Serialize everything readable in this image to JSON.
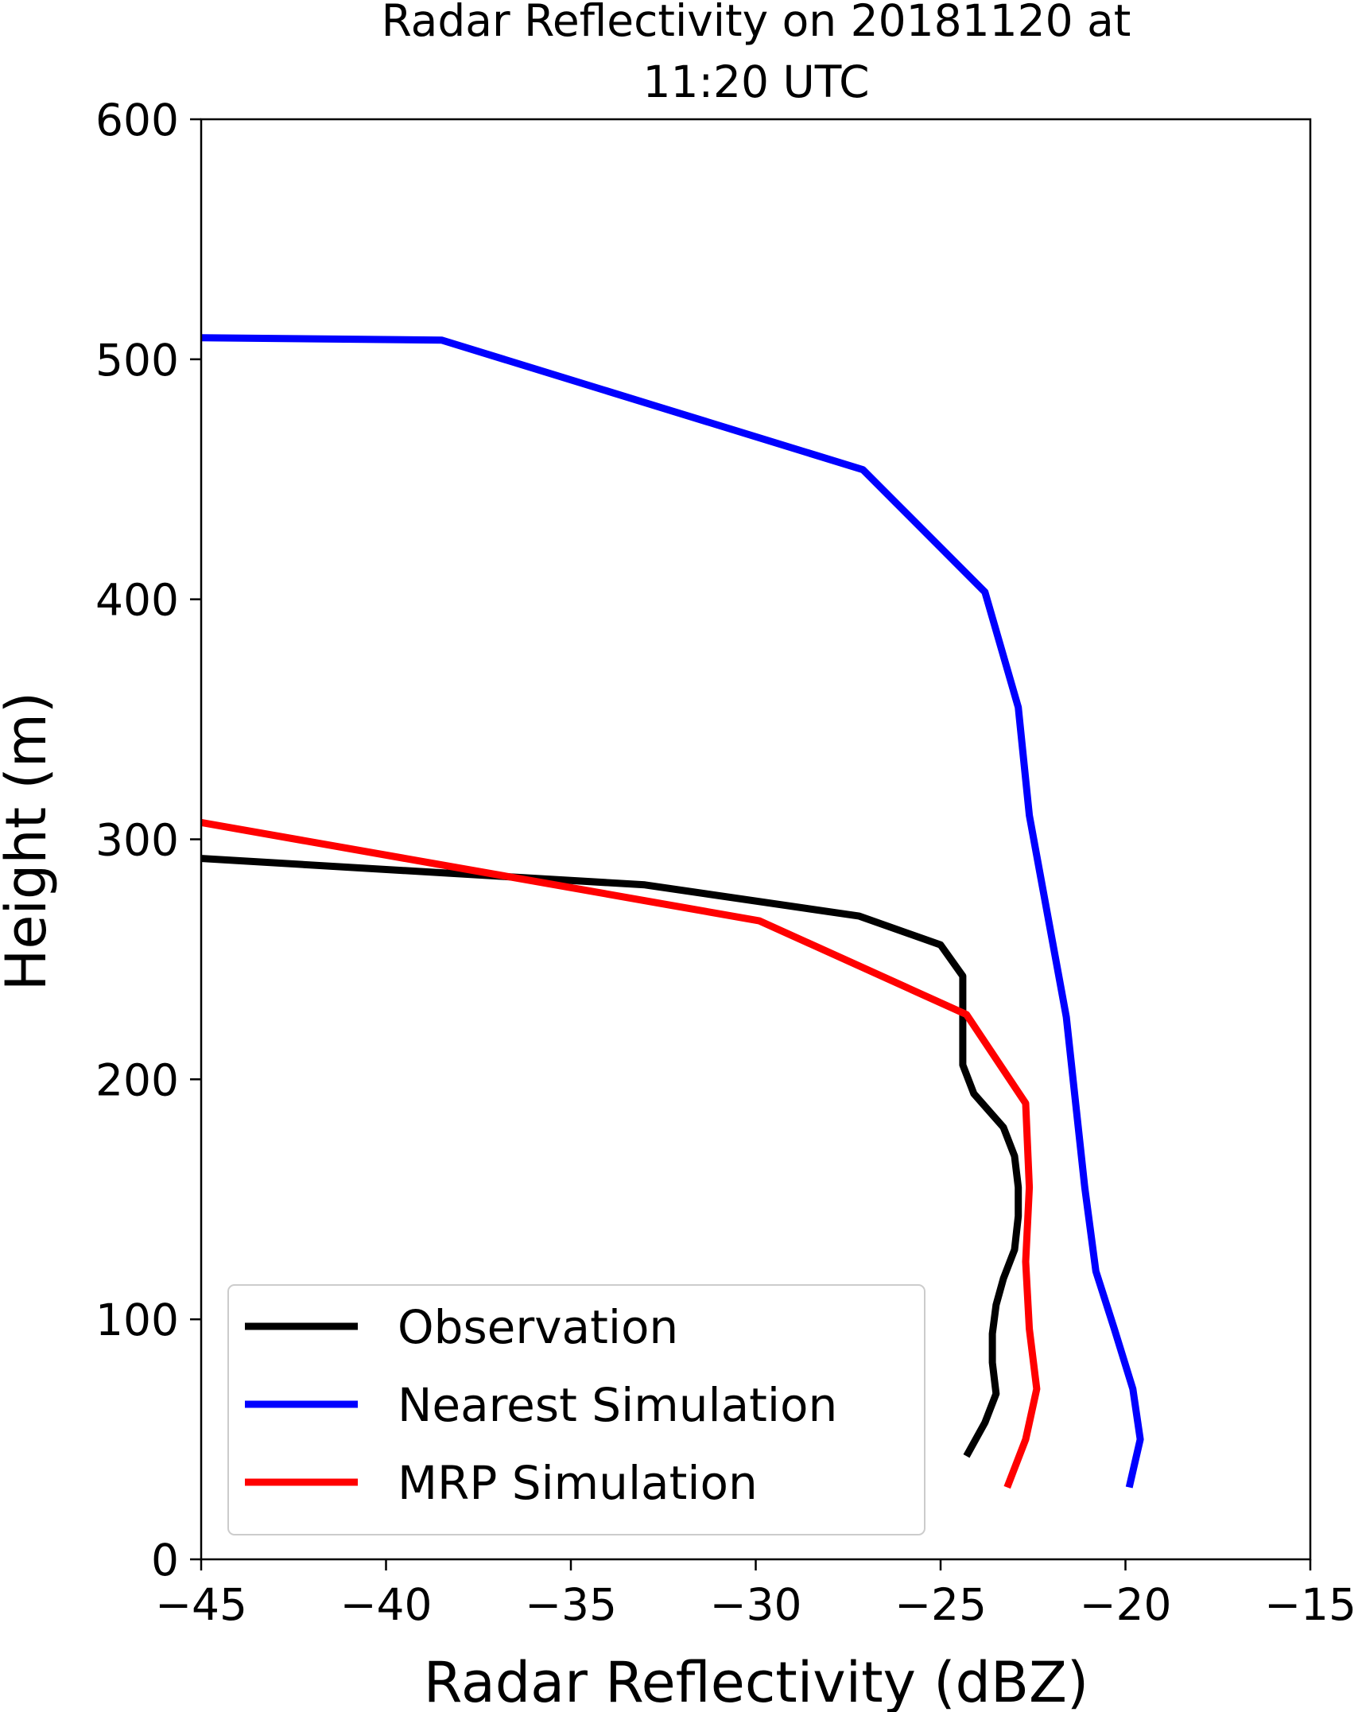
{
  "chart_data": {
    "type": "line",
    "title": "Radar Reflectivity on 20181120 at 11:20 UTC",
    "title_lines": [
      "Radar Reflectivity on 20181120 at",
      "11:20 UTC"
    ],
    "xlabel": "Radar Reflectivity (dBZ)",
    "ylabel": "Height (m)",
    "xlim": [
      -45,
      -15
    ],
    "ylim": [
      0,
      600
    ],
    "xticks": [
      -45,
      -40,
      -35,
      -30,
      -25,
      -20,
      -15
    ],
    "xtick_labels": [
      "−45",
      "−40",
      "−35",
      "−30",
      "−25",
      "−20",
      "−15"
    ],
    "yticks": [
      0,
      100,
      200,
      300,
      400,
      500,
      600
    ],
    "ytick_labels": [
      "0",
      "100",
      "200",
      "300",
      "400",
      "500",
      "600"
    ],
    "grid": false,
    "legend_position": "lower-left",
    "series": [
      {
        "name": "Observation",
        "color": "#000000",
        "points": [
          [
            -45.0,
            292
          ],
          [
            -33.0,
            281
          ],
          [
            -27.2,
            268
          ],
          [
            -25.0,
            256
          ],
          [
            -24.4,
            243
          ],
          [
            -24.4,
            206
          ],
          [
            -24.1,
            194
          ],
          [
            -23.3,
            180
          ],
          [
            -23.0,
            168
          ],
          [
            -22.9,
            155
          ],
          [
            -22.9,
            143
          ],
          [
            -23.0,
            129
          ],
          [
            -23.3,
            117
          ],
          [
            -23.5,
            106
          ],
          [
            -23.6,
            94
          ],
          [
            -23.6,
            82
          ],
          [
            -23.5,
            69
          ],
          [
            -23.8,
            57
          ],
          [
            -24.3,
            43
          ]
        ]
      },
      {
        "name": "Nearest Simulation",
        "color": "#0000ff",
        "points": [
          [
            -45.0,
            509
          ],
          [
            -38.5,
            508
          ],
          [
            -27.1,
            454
          ],
          [
            -23.8,
            403
          ],
          [
            -22.9,
            355
          ],
          [
            -22.6,
            310
          ],
          [
            -21.6,
            226
          ],
          [
            -21.1,
            155
          ],
          [
            -20.8,
            120
          ],
          [
            -20.3,
            96
          ],
          [
            -19.8,
            71
          ],
          [
            -19.6,
            50
          ],
          [
            -19.9,
            30
          ]
        ]
      },
      {
        "name": "MRP Simulation",
        "color": "#ff0000",
        "points": [
          [
            -45.0,
            307
          ],
          [
            -29.9,
            266
          ],
          [
            -24.3,
            227
          ],
          [
            -22.7,
            190
          ],
          [
            -22.6,
            155
          ],
          [
            -22.7,
            124
          ],
          [
            -22.6,
            96
          ],
          [
            -22.4,
            71
          ],
          [
            -22.7,
            50
          ],
          [
            -23.2,
            30
          ]
        ]
      }
    ]
  }
}
